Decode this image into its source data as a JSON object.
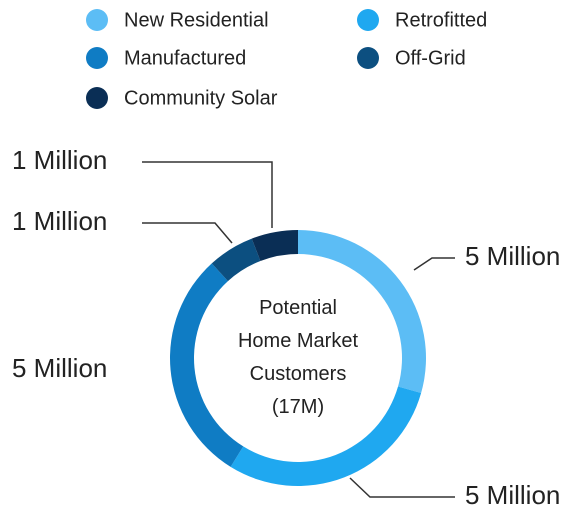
{
  "chart_data": {
    "type": "donut",
    "center_label": [
      "Potential",
      "Home Market",
      "Customers",
      "(17M)"
    ],
    "categories": [
      "New Residential",
      "Retrofitted",
      "Manufactured",
      "Off-Grid",
      "Community Solar"
    ],
    "values": [
      5,
      5,
      5,
      1,
      1
    ],
    "value_labels": [
      "5 Million",
      "5 Million",
      "5 Million",
      "1 Million",
      "1 Million"
    ],
    "colors": [
      "#5cbdf5",
      "#1fa8f0",
      "#0f7cc4",
      "#0c4f80",
      "#0a2e55"
    ],
    "legend": "top"
  }
}
